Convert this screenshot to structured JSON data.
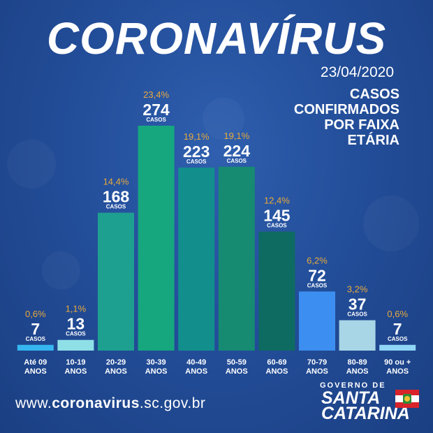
{
  "header": {
    "title": "CORONAVÍRUS",
    "date": "23/04/2020",
    "subtitle_lines": [
      "CASOS",
      "CONFIRMADOS",
      "POR FAIXA",
      "ETÁRIA"
    ]
  },
  "chart_data": {
    "type": "bar",
    "unit_label": "CASOS",
    "categories": [
      [
        "Até 09",
        "ANOS"
      ],
      [
        "10-19",
        "ANOS"
      ],
      [
        "20-29",
        "ANOS"
      ],
      [
        "30-39",
        "ANOS"
      ],
      [
        "40-49",
        "ANOS"
      ],
      [
        "50-59",
        "ANOS"
      ],
      [
        "60-69",
        "ANOS"
      ],
      [
        "70-79",
        "ANOS"
      ],
      [
        "80-89",
        "ANOS"
      ],
      [
        "90 ou +",
        "ANOS"
      ]
    ],
    "values": [
      7,
      13,
      168,
      274,
      223,
      224,
      145,
      72,
      37,
      7
    ],
    "percentages": [
      "0,6%",
      "1,1%",
      "14,4%",
      "23,4%",
      "19,1%",
      "19,1%",
      "12,4%",
      "6,2%",
      "3,2%",
      "0,6%"
    ],
    "colors": [
      "#35b6f0",
      "#8ee0e6",
      "#1ea090",
      "#16a77f",
      "#128f8c",
      "#178a72",
      "#0e6b62",
      "#3c8ff0",
      "#a9d6e6",
      "#8fd6f7"
    ],
    "ylim": [
      0,
      274
    ]
  },
  "footer": {
    "website_prefix": "www.",
    "website_bold": "coronavirus",
    "website_suffix": ".sc.gov.br",
    "logo_top": "GOVERNO DE",
    "logo_line1": "SANTA",
    "logo_line2": "CATARINA"
  }
}
